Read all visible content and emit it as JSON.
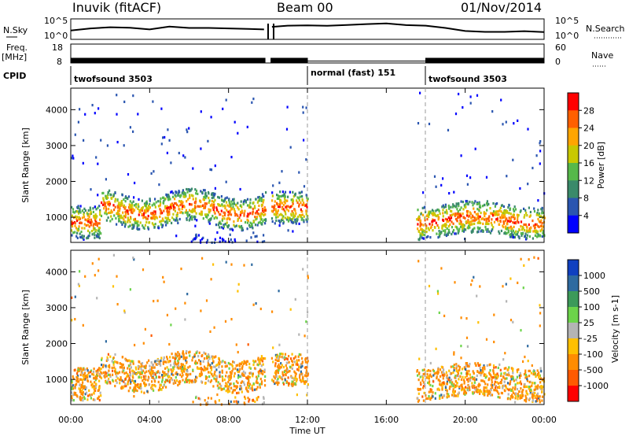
{
  "header": {
    "station": "Inuvik (fitACF)",
    "beam": "Beam 00",
    "date": "01/Nov/2014"
  },
  "labels": {
    "nsky": "N.Sky",
    "nsearch": "N.Search",
    "freq": "Freq.",
    "freq_unit": "[MHz]",
    "nave": "Nave",
    "cpid": "CPID",
    "ylabel": "Slant Range [km]",
    "xlabel": "Time UT",
    "nsky_top": "10^5",
    "nsky_bottom": "10^0",
    "nsky_top_r": "10^5",
    "nsky_bottom_r": "10^0",
    "freq_top": "18",
    "freq_bottom": "8",
    "nave_top": "60",
    "nave_bottom": "0"
  },
  "cpid_segments": [
    {
      "label": "twofsound 3503",
      "start_h": 0,
      "end_h": 12
    },
    {
      "label": "normal (fast) 151",
      "start_h": 12,
      "end_h": 18
    },
    {
      "label": "twofsound 3503",
      "start_h": 18,
      "end_h": 24
    }
  ],
  "colors": {
    "power": [
      "#0000ff",
      "#2a55b0",
      "#3a8a6a",
      "#56b84a",
      "#c8c800",
      "#ffa500",
      "#ff6000",
      "#ff0000"
    ],
    "velocity": [
      "#1040c0",
      "#2e6aa0",
      "#3c9a5a",
      "#6cd44a",
      "#b4b4b4",
      "#ffc000",
      "#ff8c00",
      "#ff5a00",
      "#ff0000"
    ]
  },
  "chart_data": [
    {
      "type": "heatmap",
      "name": "power",
      "xlabel": "Time UT",
      "ylabel": "Slant Range [km]",
      "xlim": [
        0,
        24
      ],
      "ylim": [
        300,
        4600
      ],
      "x_ticks": [
        "00:00",
        "04:00",
        "08:00",
        "12:00",
        "16:00",
        "20:00",
        "00:00"
      ],
      "y_ticks": [
        1000,
        2000,
        3000,
        4000
      ],
      "colorbar": {
        "label": "Power [dB]",
        "ticks": [
          4,
          8,
          12,
          16,
          20,
          24,
          28
        ],
        "range": [
          0,
          32
        ]
      },
      "data_gaps_h": [
        [
          9.85,
          10.15
        ],
        [
          12.0,
          17.5
        ]
      ]
    },
    {
      "type": "heatmap",
      "name": "velocity",
      "xlabel": "Time UT",
      "ylabel": "Slant Range [km]",
      "xlim": [
        0,
        24
      ],
      "ylim": [
        300,
        4600
      ],
      "x_ticks": [
        "00:00",
        "04:00",
        "08:00",
        "12:00",
        "16:00",
        "20:00",
        "00:00"
      ],
      "y_ticks": [
        1000,
        2000,
        3000,
        4000
      ],
      "colorbar": {
        "label": "Velocity [m s-1]",
        "ticks": [
          "1000",
          "500",
          "100",
          "25",
          "-25",
          "-100",
          "-500",
          "-1000"
        ]
      }
    },
    {
      "type": "line",
      "name": "n-sky",
      "ylim_label": [
        "10^0",
        "10^5"
      ],
      "x": [
        0,
        1,
        2,
        3,
        4,
        5,
        6,
        7,
        8,
        9,
        9.8,
        10.2,
        11,
        12,
        13,
        14,
        15,
        16,
        17,
        18,
        19,
        20,
        21,
        22,
        23,
        24
      ],
      "values": [
        0.45,
        0.55,
        0.6,
        0.55,
        0.5,
        0.65,
        0.55,
        0.6,
        0.55,
        0.5,
        0.45,
        0.65,
        0.7,
        0.7,
        0.72,
        0.75,
        0.78,
        0.8,
        0.75,
        0.7,
        0.55,
        0.42,
        0.35,
        0.33,
        0.35,
        0.35
      ]
    },
    {
      "type": "bar",
      "name": "frequency",
      "ylim": [
        8,
        18
      ],
      "segments": [
        {
          "start_h": 0,
          "end_h": 9.85,
          "value": 10.5
        },
        {
          "start_h": 10.15,
          "end_h": 12,
          "value": 10.5
        },
        {
          "start_h": 12,
          "end_h": 18,
          "value": 9.0
        },
        {
          "start_h": 18,
          "end_h": 24,
          "value": 10.5
        }
      ]
    }
  ]
}
